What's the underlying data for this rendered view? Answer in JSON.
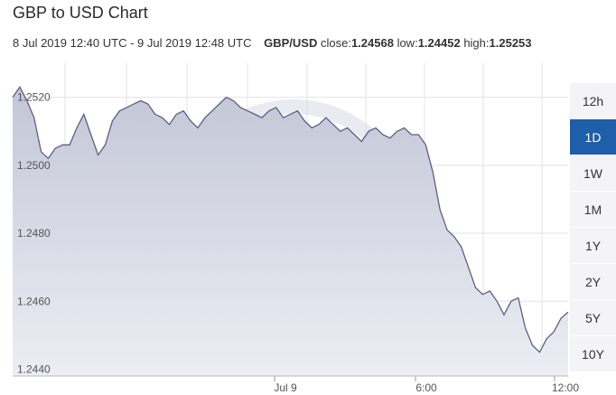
{
  "header": {
    "title": "GBP to USD Chart",
    "date_range": "8 Jul 2019 12:40 UTC - 9 Jul 2019 12:48 UTC",
    "pair": "GBP/USD",
    "close_label": "close:",
    "close_value": "1.24568",
    "low_label": "low:",
    "low_value": "1.24452",
    "high_label": "high:",
    "high_value": "1.25253"
  },
  "range_buttons": [
    {
      "label": "12h",
      "active": false
    },
    {
      "label": "1D",
      "active": true
    },
    {
      "label": "1W",
      "active": false
    },
    {
      "label": "1M",
      "active": false
    },
    {
      "label": "1Y",
      "active": false
    },
    {
      "label": "2Y",
      "active": false
    },
    {
      "label": "5Y",
      "active": false
    },
    {
      "label": "10Y",
      "active": false
    }
  ],
  "colors": {
    "line": "#5b5f85",
    "fill_top": "#c3c6d6",
    "fill_bottom": "#eceef4",
    "grid": "#e3e3e8",
    "active_button": "#1f5ea8",
    "watermark": "#d7dbe6"
  },
  "watermark_icon": "xe-logo-watermark",
  "chart_data": {
    "type": "area",
    "x_ticks": [
      "Jul 9",
      "6:00",
      "12:00"
    ],
    "y_ticks": [
      "1.2520",
      "1.2500",
      "1.2480",
      "1.2460",
      "1.2440"
    ],
    "ylim": [
      1.2438,
      1.253
    ],
    "grid": true,
    "series": [
      {
        "values": [
          1.252,
          1.2523,
          1.2519,
          1.2514,
          1.2504,
          1.2502,
          1.2505,
          1.2506,
          1.2506,
          1.2511,
          1.2515,
          1.2509,
          1.2503,
          1.2506,
          1.2513,
          1.2516,
          1.2517,
          1.2518,
          1.2519,
          1.2518,
          1.2515,
          1.2514,
          1.2512,
          1.2515,
          1.2516,
          1.2513,
          1.2511,
          1.2514,
          1.2516,
          1.2518,
          1.252,
          1.2519,
          1.2517,
          1.2516,
          1.2515,
          1.2514,
          1.2516,
          1.2517,
          1.2514,
          1.2515,
          1.2516,
          1.2513,
          1.2511,
          1.2512,
          1.2514,
          1.2512,
          1.251,
          1.2511,
          1.2509,
          1.2507,
          1.251,
          1.2511,
          1.2509,
          1.2508,
          1.251,
          1.2511,
          1.2509,
          1.2509,
          1.2506,
          1.2498,
          1.2487,
          1.2481,
          1.2479,
          1.2476,
          1.247,
          1.2464,
          1.2462,
          1.2463,
          1.246,
          1.2456,
          1.246,
          1.2461,
          1.2452,
          1.2447,
          1.2445,
          1.2449,
          1.2451,
          1.2455,
          1.24568
        ]
      }
    ]
  }
}
